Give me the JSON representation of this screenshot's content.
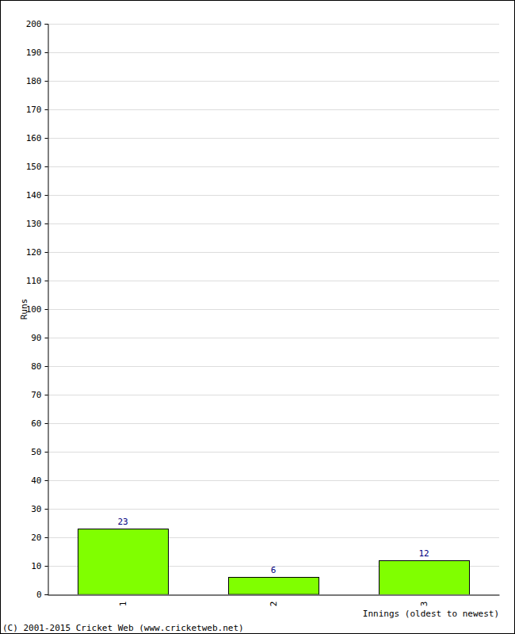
{
  "chart_data": {
    "type": "bar",
    "categories": [
      "1",
      "2",
      "3"
    ],
    "values": [
      23,
      6,
      12
    ],
    "color": "#80ff00",
    "x_label": "Innings (oldest to newest)",
    "y_label": "Runs",
    "annotations": [
      "(C) 2001-2015 Cricket Web (www.cricketweb.net)"
    ],
    "ylim": [
      0,
      200
    ],
    "yticks": [
      0,
      10,
      20,
      30,
      40,
      50,
      60,
      70,
      80,
      90,
      100,
      110,
      120,
      130,
      140,
      150,
      160,
      170,
      180,
      190,
      200
    ],
    "grid": true,
    "data_labels": true
  }
}
